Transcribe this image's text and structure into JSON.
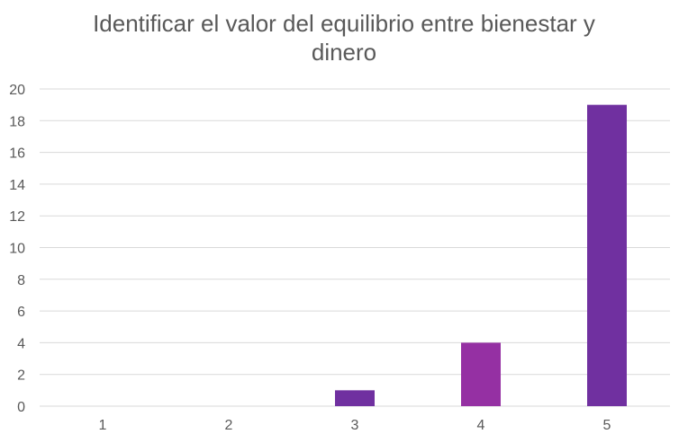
{
  "chart_data": {
    "type": "bar",
    "title": "Identificar el valor del equilibrio entre bienestar y dinero",
    "title_lines": [
      "Identificar el valor del equilibrio entre bienestar y",
      "dinero"
    ],
    "xlabel": "",
    "ylabel": "",
    "categories": [
      "1",
      "2",
      "3",
      "4",
      "5"
    ],
    "values": [
      0,
      0,
      1,
      4,
      19
    ],
    "bar_colors": [
      "#7030A0",
      "#7030A0",
      "#7030A0",
      "#9530A3",
      "#7030A0"
    ],
    "ylim": [
      0,
      20
    ],
    "yticks": [
      0,
      2,
      4,
      6,
      8,
      10,
      12,
      14,
      16,
      18,
      20
    ],
    "grid": true,
    "legend": "none"
  }
}
